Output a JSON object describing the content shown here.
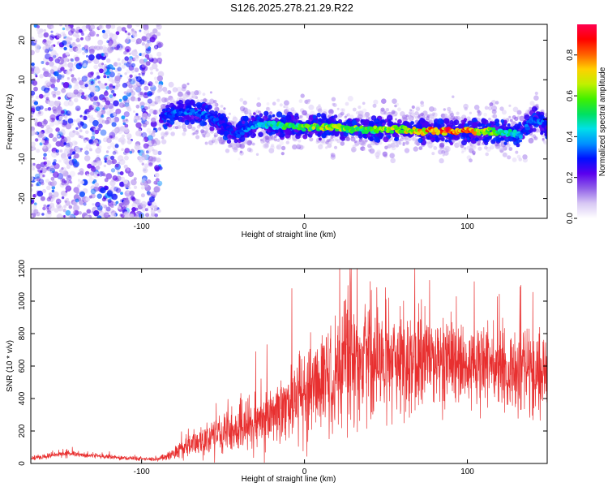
{
  "title": "S126.2025.278.21.29.R22",
  "chart_data": [
    {
      "type": "heatmap",
      "name": "spectrogram",
      "xlabel": "Height of straight line (km)",
      "ylabel": "Frequency (Hz)",
      "xlim": [
        -168,
        149
      ],
      "ylim": [
        -25,
        24
      ],
      "xticks": [
        -100,
        0,
        100
      ],
      "yticks": [
        -20,
        -10,
        0,
        10,
        20
      ],
      "colorbar": {
        "label": "Normalized spectral amplitude",
        "lim": [
          0,
          0.95
        ],
        "ticks": [
          0.0,
          0.2,
          0.4,
          0.6,
          0.8
        ],
        "colors": [
          "#ffffff",
          "#d8c8f4",
          "#9060e8",
          "#5a00ee",
          "#0010ff",
          "#0090ff",
          "#00e0e8",
          "#00e060",
          "#40f000",
          "#c0f000",
          "#ffd000",
          "#ff6000",
          "#ff0000",
          "#ff0050"
        ]
      },
      "noise_region_x": [
        -168,
        -88
      ],
      "ridge": {
        "x": [
          -88,
          -80,
          -70,
          -60,
          -50,
          -42,
          -35,
          -28,
          -20,
          -10,
          0,
          10,
          20,
          30,
          40,
          50,
          60,
          70,
          80,
          90,
          100,
          110,
          120,
          128,
          133,
          140,
          145,
          149
        ],
        "freq": [
          0.5,
          1.5,
          2.0,
          1.0,
          -1.5,
          -4.0,
          -2.0,
          -1.0,
          -1.5,
          -1.5,
          -2.0,
          -2.0,
          -2.0,
          -2.5,
          -2.5,
          -2.5,
          -2.5,
          -3.0,
          -3.0,
          -3.0,
          -3.0,
          -3.0,
          -3.0,
          -3.5,
          -4.0,
          0.0,
          -0.5,
          -2.0
        ],
        "amplitude": [
          0.3,
          0.38,
          0.38,
          0.36,
          0.32,
          0.34,
          0.38,
          0.45,
          0.52,
          0.6,
          0.64,
          0.7,
          0.68,
          0.66,
          0.62,
          0.7,
          0.75,
          0.8,
          0.88,
          0.94,
          0.86,
          0.74,
          0.6,
          0.5,
          0.4,
          0.34,
          0.38,
          0.3
        ]
      }
    },
    {
      "type": "line",
      "name": "snr",
      "xlabel": "Height of straight line (km)",
      "ylabel": "SNR (10 * v/v)",
      "xlim": [
        -168,
        149
      ],
      "ylim": [
        0,
        1200
      ],
      "xticks": [
        -100,
        0,
        100
      ],
      "yticks": [
        0,
        200,
        400,
        600,
        800,
        1000,
        1200
      ],
      "color": "#e83030",
      "envelope": {
        "x": [
          -168,
          -150,
          -140,
          -120,
          -100,
          -90,
          -80,
          -70,
          -60,
          -50,
          -40,
          -30,
          -20,
          -10,
          0,
          10,
          20,
          30,
          40,
          50,
          60,
          70,
          80,
          90,
          100,
          110,
          120,
          130,
          140,
          149
        ],
        "mean": [
          30,
          58,
          55,
          40,
          28,
          25,
          60,
          110,
          150,
          180,
          220,
          250,
          290,
          350,
          420,
          480,
          550,
          600,
          610,
          620,
          620,
          620,
          620,
          610,
          600,
          600,
          600,
          580,
          560,
          540
        ],
        "spread": [
          15,
          22,
          20,
          15,
          12,
          12,
          45,
          90,
          110,
          150,
          170,
          200,
          220,
          270,
          330,
          350,
          380,
          400,
          380,
          360,
          340,
          320,
          300,
          290,
          280,
          290,
          300,
          300,
          300,
          280
        ]
      }
    }
  ]
}
